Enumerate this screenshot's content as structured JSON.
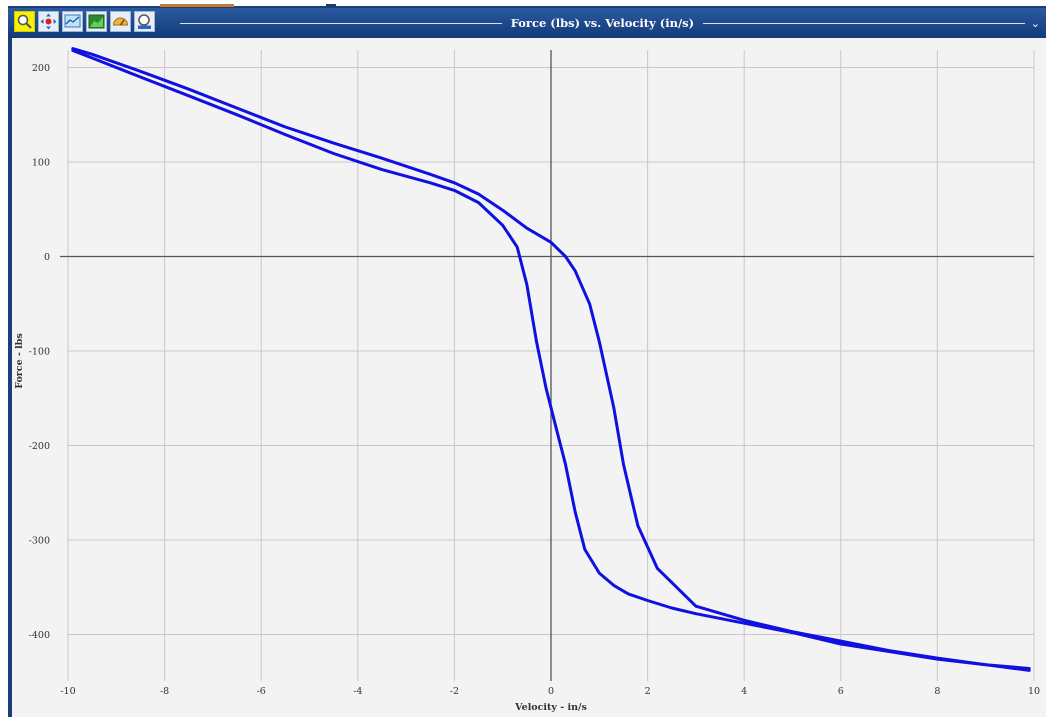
{
  "window": {
    "title": "Force (lbs) vs. Velocity (in/s)",
    "menu_glyph": "⌄"
  },
  "toolbar": {
    "tools": [
      {
        "icon": "zoom-icon",
        "active": true
      },
      {
        "icon": "pan-icon",
        "active": false
      },
      {
        "icon": "chart-view-icon",
        "active": false
      },
      {
        "icon": "area-chart-icon",
        "active": false
      },
      {
        "icon": "gauge-icon",
        "active": false
      },
      {
        "icon": "zoom-reset-icon",
        "active": false
      }
    ]
  },
  "chart_data": {
    "type": "line",
    "title": "Force (lbs) vs. Velocity (in/s)",
    "xlabel": "Velocity - in/s",
    "ylabel": "Force - lbs",
    "xlim": [
      -10,
      10
    ],
    "ylim": [
      -450,
      220
    ],
    "xticks": [
      -10,
      -8,
      -6,
      -4,
      -2,
      0,
      2,
      4,
      6,
      8,
      10
    ],
    "yticks": [
      200,
      100,
      0,
      -100,
      -200,
      -300,
      -400
    ],
    "grid": true,
    "colors": {
      "line": "#1010e0",
      "grid": "#c8c8c8",
      "zero_axis": "#555555",
      "background": "#f3f3f3"
    },
    "series": [
      {
        "x": [
          -9.9,
          -9.5,
          -8.5,
          -7.5,
          -6.5,
          -5.5,
          -4.5,
          -3.5,
          -2.5,
          -2.0,
          -1.5,
          -1.0,
          -0.5,
          0.0,
          0.3,
          0.5,
          0.8,
          1.0,
          1.3,
          1.5,
          1.8,
          2.2,
          3.0,
          4.0,
          5.0,
          6.0,
          7.0,
          8.0,
          9.0,
          9.9
        ],
        "y": [
          220,
          214,
          196,
          177,
          157,
          137,
          120,
          104,
          87,
          78,
          66,
          49,
          30,
          15,
          0,
          -15,
          -50,
          -90,
          -160,
          -220,
          -285,
          -330,
          -370,
          -385,
          -397,
          -407,
          -417,
          -425,
          -432,
          -438
        ]
      },
      {
        "x": [
          -9.9,
          -9.5,
          -8.5,
          -7.5,
          -6.5,
          -5.5,
          -4.5,
          -3.5,
          -2.5,
          -2.0,
          -1.5,
          -1.0,
          -0.7,
          -0.5,
          -0.3,
          -0.1,
          0.1,
          0.3,
          0.5,
          0.7,
          1.0,
          1.3,
          1.6,
          2.0,
          2.5,
          3.0,
          4.0,
          5.0,
          6.0,
          7.0,
          8.0,
          9.0,
          9.9
        ],
        "y": [
          218,
          210,
          190,
          170,
          150,
          129,
          109,
          92,
          78,
          70,
          57,
          33,
          10,
          -30,
          -90,
          -140,
          -180,
          -220,
          -270,
          -310,
          -335,
          -348,
          -357,
          -364,
          -372,
          -378,
          -388,
          -398,
          -410,
          -418,
          -426,
          -432,
          -436
        ]
      }
    ]
  }
}
